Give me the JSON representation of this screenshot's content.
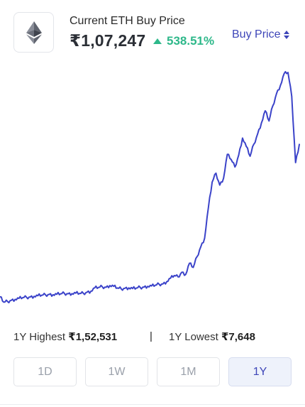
{
  "header": {
    "title": "Current ETH Buy Price",
    "price": "₹1,07,247",
    "change": "538.51%",
    "price_type_select": "Buy Price",
    "logo_icon": "ethereum-icon",
    "change_icon": "triangle-up-icon",
    "select_icon": "sort-arrows-icon"
  },
  "colors": {
    "accent": "#3d45b8",
    "positive": "#2eb88a",
    "line": "#3b43c9"
  },
  "chart_data": {
    "type": "line",
    "title": "",
    "xlabel": "",
    "ylabel": "",
    "grid": false,
    "x_count": 80,
    "values": [
      11300,
      7900,
      8300,
      9100,
      9700,
      10300,
      10800,
      11000,
      11200,
      11600,
      12000,
      12300,
      12500,
      12800,
      12600,
      12900,
      13200,
      13400,
      13200,
      13300,
      13600,
      13400,
      13500,
      14200,
      14800,
      16900,
      17200,
      17600,
      17300,
      18400,
      17900,
      16800,
      16300,
      16700,
      16900,
      16500,
      16800,
      17200,
      17400,
      17900,
      18100,
      18600,
      19200,
      19400,
      20800,
      23000,
      24700,
      23800,
      26800,
      25300,
      32400,
      29800,
      36600,
      42800,
      48200,
      67500,
      83500,
      89100,
      81600,
      86000,
      101000,
      97800,
      93000,
      100500,
      111200,
      106000,
      99800,
      107400,
      113800,
      120800,
      128400,
      122000,
      131500,
      139300,
      144300,
      151800,
      152531,
      137500,
      95800,
      107247
    ],
    "ylim": [
      7648,
      152531
    ]
  },
  "stats": {
    "highest_label": "1Y Highest",
    "highest_value": "₹1,52,531",
    "separator": "|",
    "lowest_label": "1Y Lowest",
    "lowest_value": "₹7,648"
  },
  "ranges": [
    {
      "label": "1D",
      "active": false
    },
    {
      "label": "1W",
      "active": false
    },
    {
      "label": "1M",
      "active": false
    },
    {
      "label": "1Y",
      "active": true
    }
  ]
}
